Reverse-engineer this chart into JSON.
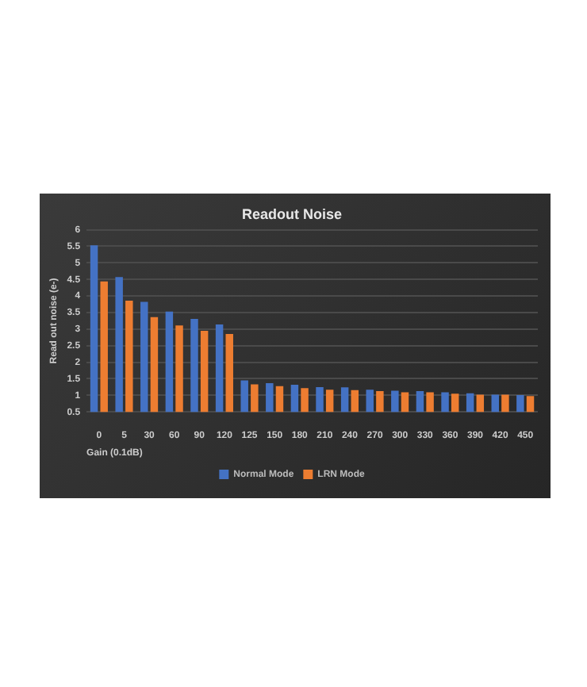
{
  "chart_data": {
    "type": "bar",
    "title": "Readout Noise",
    "xlabel": "Gain (0.1dB)",
    "ylabel": "Read out noise (e-)",
    "categories": [
      "0",
      "5",
      "30",
      "60",
      "90",
      "120",
      "125",
      "150",
      "180",
      "210",
      "240",
      "270",
      "300",
      "330",
      "360",
      "390",
      "420",
      "450"
    ],
    "series": [
      {
        "name": "Normal Mode",
        "color": "#4472c4",
        "values": [
          5.53,
          4.57,
          3.82,
          3.53,
          3.31,
          3.14,
          1.45,
          1.37,
          1.32,
          1.25,
          1.24,
          1.17,
          1.14,
          1.13,
          1.09,
          1.06,
          1.02,
          1.01
        ]
      },
      {
        "name": "LRN Mode",
        "color": "#ed7d31",
        "values": [
          4.44,
          3.86,
          3.36,
          3.11,
          2.95,
          2.85,
          1.33,
          1.28,
          1.22,
          1.17,
          1.16,
          1.13,
          1.09,
          1.09,
          1.05,
          1.02,
          1.02,
          0.98
        ]
      }
    ],
    "ylim": [
      0.5,
      6
    ],
    "yticks": [
      0.5,
      1,
      1.5,
      2,
      2.5,
      3,
      3.5,
      4,
      4.5,
      5,
      5.5,
      6
    ],
    "grid": "y",
    "legend": "bottom"
  }
}
